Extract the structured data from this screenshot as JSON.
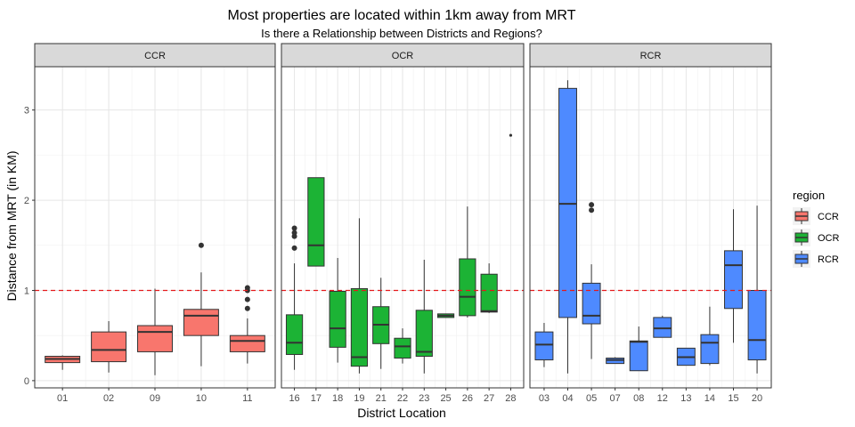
{
  "chart_data": {
    "type": "boxplot",
    "title": "Most properties are located within 1km away from MRT",
    "subtitle": "Is there a Relationship between Districts and Regions?",
    "xlabel": "District Location",
    "ylabel": "Distance from MRT (in KM)",
    "ylim": [
      -0.08,
      3.48
    ],
    "yticks": [
      0,
      1,
      2,
      3
    ],
    "reference_line": {
      "y": 1,
      "color": "#e41a1c",
      "style": "dashed"
    },
    "grid": true,
    "legend": {
      "title": "region",
      "position": "right",
      "items": [
        {
          "label": "CCR",
          "color": "#F8766D"
        },
        {
          "label": "OCR",
          "color": "#1CB335"
        },
        {
          "label": "RCR",
          "color": "#4E8AFF"
        }
      ]
    },
    "panels": [
      {
        "label": "CCR",
        "color": "#F8766D",
        "boxes": [
          {
            "district": "01",
            "min": 0.12,
            "q1": 0.2,
            "median": 0.24,
            "q3": 0.27,
            "max": 0.28,
            "outliers": []
          },
          {
            "district": "02",
            "min": 0.09,
            "q1": 0.21,
            "median": 0.34,
            "q3": 0.54,
            "max": 0.66,
            "outliers": []
          },
          {
            "district": "09",
            "min": 0.06,
            "q1": 0.32,
            "median": 0.54,
            "q3": 0.61,
            "max": 1.02,
            "outliers": []
          },
          {
            "district": "10",
            "min": 0.16,
            "q1": 0.5,
            "median": 0.72,
            "q3": 0.79,
            "max": 1.2,
            "outliers": [
              1.5
            ]
          },
          {
            "district": "11",
            "min": 0.19,
            "q1": 0.32,
            "median": 0.44,
            "q3": 0.5,
            "max": 0.69,
            "outliers": [
              0.8,
              0.9,
              1.0,
              1.03
            ]
          }
        ]
      },
      {
        "label": "OCR",
        "color": "#1CB335",
        "boxes": [
          {
            "district": "16",
            "min": 0.12,
            "q1": 0.29,
            "median": 0.42,
            "q3": 0.73,
            "max": 1.3,
            "outliers": [
              1.47,
              1.6,
              1.64,
              1.69
            ]
          },
          {
            "district": "17",
            "min": 1.27,
            "q1": 1.27,
            "median": 1.5,
            "q3": 2.25,
            "max": 2.25,
            "outliers": []
          },
          {
            "district": "18",
            "min": 0.2,
            "q1": 0.37,
            "median": 0.58,
            "q3": 0.99,
            "max": 1.36,
            "outliers": []
          },
          {
            "district": "19",
            "min": 0.08,
            "q1": 0.16,
            "median": 0.26,
            "q3": 1.02,
            "max": 1.8,
            "outliers": []
          },
          {
            "district": "21",
            "min": 0.13,
            "q1": 0.41,
            "median": 0.62,
            "q3": 0.82,
            "max": 1.14,
            "outliers": []
          },
          {
            "district": "22",
            "min": 0.19,
            "q1": 0.25,
            "median": 0.38,
            "q3": 0.47,
            "max": 0.58,
            "outliers": []
          },
          {
            "district": "23",
            "min": 0.08,
            "q1": 0.27,
            "median": 0.32,
            "q3": 0.78,
            "max": 1.34,
            "outliers": []
          },
          {
            "district": "25",
            "min": 0.7,
            "q1": 0.7,
            "median": 0.72,
            "q3": 0.74,
            "max": 0.74,
            "outliers": []
          },
          {
            "district": "26",
            "min": 0.7,
            "q1": 0.72,
            "median": 0.93,
            "q3": 1.35,
            "max": 1.93,
            "outliers": []
          },
          {
            "district": "27",
            "min": 0.75,
            "q1": 0.76,
            "median": 0.77,
            "q3": 1.18,
            "max": 1.3,
            "outliers": []
          },
          {
            "district": "28",
            "min": 2.72,
            "q1": 2.72,
            "median": 2.72,
            "q3": 2.72,
            "max": 2.72,
            "outliers": [],
            "single": true
          }
        ]
      },
      {
        "label": "RCR",
        "color": "#4E8AFF",
        "boxes": [
          {
            "district": "03",
            "min": 0.15,
            "q1": 0.23,
            "median": 0.4,
            "q3": 0.54,
            "max": 0.64,
            "outliers": []
          },
          {
            "district": "04",
            "min": 0.08,
            "q1": 0.7,
            "median": 1.96,
            "q3": 3.24,
            "max": 3.33,
            "outliers": []
          },
          {
            "district": "05",
            "min": 0.24,
            "q1": 0.63,
            "median": 0.72,
            "q3": 1.08,
            "max": 1.29,
            "outliers": [
              1.89,
              1.95
            ]
          },
          {
            "district": "07",
            "min": 0.19,
            "q1": 0.19,
            "median": 0.23,
            "q3": 0.25,
            "max": 0.26,
            "outliers": []
          },
          {
            "district": "08",
            "min": 0.11,
            "q1": 0.11,
            "median": 0.43,
            "q3": 0.44,
            "max": 0.6,
            "outliers": []
          },
          {
            "district": "12",
            "min": 0.48,
            "q1": 0.48,
            "median": 0.58,
            "q3": 0.7,
            "max": 0.72,
            "outliers": []
          },
          {
            "district": "13",
            "min": 0.17,
            "q1": 0.17,
            "median": 0.26,
            "q3": 0.36,
            "max": 0.36,
            "outliers": []
          },
          {
            "district": "14",
            "min": 0.17,
            "q1": 0.19,
            "median": 0.42,
            "q3": 0.51,
            "max": 0.82,
            "outliers": []
          },
          {
            "district": "15",
            "min": 0.42,
            "q1": 0.8,
            "median": 1.28,
            "q3": 1.44,
            "max": 1.9,
            "outliers": []
          },
          {
            "district": "20",
            "min": 0.08,
            "q1": 0.23,
            "median": 0.45,
            "q3": 1.0,
            "max": 1.94,
            "outliers": []
          }
        ]
      }
    ]
  }
}
